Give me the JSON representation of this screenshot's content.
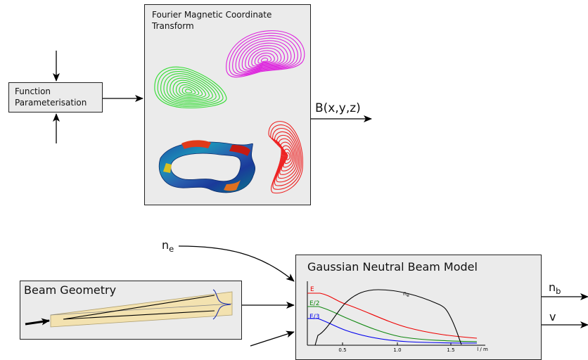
{
  "function_box": {
    "line1": "Function",
    "line2": "Parameterisation"
  },
  "fourier_box": {
    "line1": "Fourier Magnetic Coordinate",
    "line2": "Transform"
  },
  "b_output": "B(x,y,z)",
  "ne_input": {
    "base": "n",
    "sub": "e"
  },
  "beam_geometry": {
    "title": "Beam Geometry"
  },
  "gaussian_box": {
    "title": "Gaussian Neutral Beam Model"
  },
  "outputs": {
    "nb_base": "n",
    "nb_sub": "b",
    "v": "v"
  },
  "plot": {
    "curve_labels": {
      "E": "E",
      "E2": "E/2",
      "E3": "E/3",
      "ne": "n",
      "ne_sub": "e"
    },
    "x_ticks": [
      "0.5",
      "1.0",
      "1.5"
    ],
    "x_unit": "l / m"
  },
  "colors": {
    "box_fill": "#ebebeb",
    "green_contours": "#33dd33",
    "magenta_contours": "#dd22dd",
    "red_contours": "#ee2222",
    "beam_fill": "#f3e2b0",
    "E": "#ee0000",
    "E2": "#118811",
    "E3": "#0000ee"
  }
}
